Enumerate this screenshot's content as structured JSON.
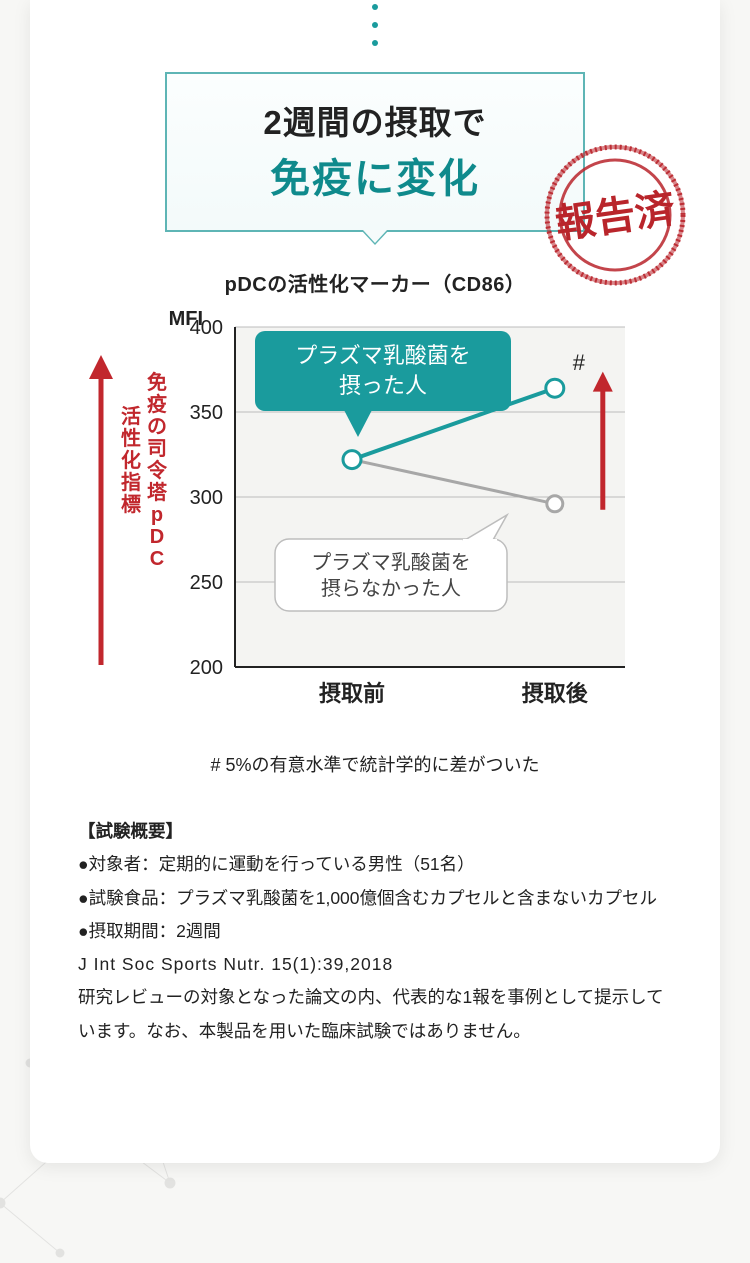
{
  "title": {
    "line1": "2週間の摂取で",
    "line2": "免疫に変化"
  },
  "stamp": {
    "text": "報告済",
    "ring_color": "#b9252b",
    "text_color": "#b9252b"
  },
  "chart": {
    "subtitle": "pDCの活性化マーカー（CD86）",
    "type": "line",
    "y_axis_label": "MFI",
    "y_axis_label_fontsize": 20,
    "ylim": [
      200,
      400
    ],
    "yticks": [
      200,
      250,
      300,
      350,
      400
    ],
    "ytick_fontsize": 20,
    "x_categories": [
      "摂取前",
      "摂取後"
    ],
    "x_label_fontsize": 22,
    "series": [
      {
        "name": "プラズマ乳酸菌を摂った人",
        "color": "#1a9b9d",
        "marker_fill": "#ffffff",
        "marker_stroke": "#1a9b9d",
        "line_width": 4,
        "marker_radius": 9,
        "values": [
          322,
          364
        ]
      },
      {
        "name": "プラズマ乳酸菌を摂らなかった人",
        "color": "#a7a7a7",
        "marker_fill": "#ffffff",
        "marker_stroke": "#a7a7a7",
        "line_width": 3,
        "marker_radius": 8,
        "values": [
          322,
          296
        ]
      }
    ],
    "significance_marker": "#",
    "plot_bg": "#f4f4f2",
    "grid_color": "#bcbcbc",
    "axis_color": "#222222",
    "callout_treat": {
      "text1": "プラズマ乳酸菌を",
      "text2": "摂った人",
      "bg": "#1a9b9d",
      "text_color": "#ffffff",
      "fontsize": 22
    },
    "callout_ctrl": {
      "text1": "プラズマ乳酸菌を",
      "text2": "摂らなかった人",
      "bg": "#ffffff",
      "border": "#bdbdbd",
      "text_color": "#444444",
      "fontsize": 20
    },
    "left_annotation": {
      "line1": "免疫の司令塔pDC",
      "line2": "活性化指標",
      "color": "#c1272d",
      "fontsize": 20
    },
    "right_arrow_color": "#c1272d"
  },
  "footnote": "# 5%の有意水準で統計学的に差がついた",
  "summary": {
    "heading": "【試験概要】",
    "bullets": [
      "対象者：定期的に運動を行っている男性（51名）",
      "試験食品：プラズマ乳酸菌を1,000億個含むカプセルと含まないカプセル",
      "摂取期間：2週間"
    ],
    "citation": "J Int Soc Sports Nutr. 15(1):39,2018",
    "note": "研究レビューの対象となった論文の内、代表的な1報を事例として提示しています。なお、本製品を用いた臨床試験ではありません。",
    "bullet_glyph": "●"
  },
  "colors": {
    "card_bg": "#ffffff",
    "page_bg": "#f7f7f5"
  }
}
